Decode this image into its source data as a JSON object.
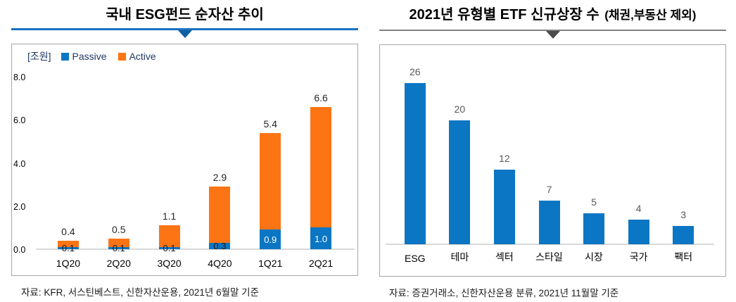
{
  "left": {
    "title": "국내 ESG펀드 순자산 추이",
    "unit": "[조원]",
    "source": "자료: KFR, 서스틴베스트, 신한자산운용, 2021년 6월말 기준"
  },
  "right": {
    "title_main": "2021년 유형별 ETF 신규상장 수",
    "title_suffix": "(채권,부동산 제외)",
    "source": "자료: 증권거래소, 신한자산운용 분류, 2021년 11월말 기준"
  },
  "colors": {
    "passive_blue": "#0B76C3",
    "active_orange": "#FC7414",
    "left_accent_line": "#1B72C0",
    "left_accent_triangle": "#0E5FA4",
    "right_accent_line": "#808080",
    "right_accent_triangle": "#4A4A4A",
    "box_border": "#A6A6A6",
    "baseline": "#D9D9D9",
    "legend_text": "#1F3864",
    "value_label_dark": "#262626",
    "value_label_small_dark": "#1A1A1A",
    "value_label_white": "#FFFFFF",
    "right_value_label": "#595959"
  },
  "chart_data": [
    {
      "type": "bar",
      "stacked": true,
      "title": "국내 ESG펀드 순자산 추이",
      "unit": "[조원]",
      "categories": [
        "1Q20",
        "2Q20",
        "3Q20",
        "4Q20",
        "1Q21",
        "2Q21"
      ],
      "series": [
        {
          "name": "Passive",
          "color": "#0B76C3",
          "values": [
            0.1,
            0.1,
            0.1,
            0.3,
            0.9,
            1.0
          ]
        },
        {
          "name": "Active",
          "color": "#FC7414",
          "values": [
            0.3,
            0.4,
            1.0,
            2.6,
            4.5,
            5.6
          ]
        }
      ],
      "totals": [
        0.4,
        0.5,
        1.1,
        2.9,
        5.4,
        6.6
      ],
      "total_labels": [
        "0.4",
        "0.5",
        "1.1",
        "2.9",
        "5.4",
        "6.6"
      ],
      "passive_labels": [
        "0.1",
        "0.1",
        "0.1",
        "0.3",
        "0.9",
        "1.0"
      ],
      "ytick_values": [
        0,
        2,
        4,
        6,
        8
      ],
      "ytick_labels": [
        "0.0",
        "2.0",
        "4.0",
        "6.0",
        "8.0"
      ],
      "ylim": [
        0,
        8.2
      ],
      "grid": false,
      "legend_position": "top-left"
    },
    {
      "type": "bar",
      "stacked": false,
      "title": "2021년 유형별 ETF 신규상장 수 (채권,부동산 제외)",
      "categories": [
        "ESG",
        "테마",
        "섹터",
        "스타일",
        "시장",
        "국가",
        "팩터"
      ],
      "values": [
        26,
        20,
        12,
        7,
        5,
        4,
        3
      ],
      "value_labels": [
        "26",
        "20",
        "12",
        "7",
        "5",
        "4",
        "3"
      ],
      "bar_color": "#0B76C3",
      "ylim": [
        0,
        27.1
      ],
      "yaxis_visible": false,
      "grid": false,
      "legend_position": "none"
    }
  ]
}
